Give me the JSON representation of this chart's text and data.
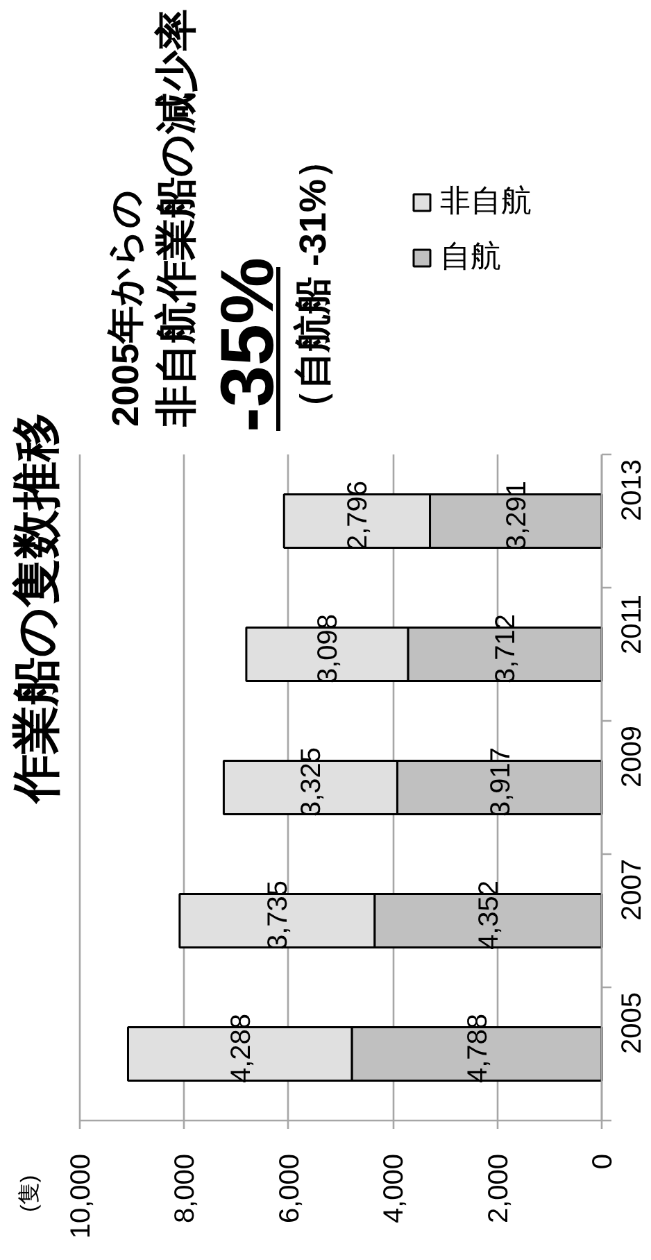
{
  "chart_data": {
    "type": "bar",
    "orientation": "horizontal",
    "stacked": true,
    "title": "作業船の隻数推移",
    "ylabel": "(隻)",
    "annotations": [
      "2005年からの",
      "非自航作業船の減少率",
      "-35%",
      "（自航船 -31%）"
    ],
    "categories": [
      "2013",
      "2011",
      "2009",
      "2007",
      "2005"
    ],
    "series": [
      {
        "name": "自航",
        "color": "#c0c0c0",
        "values": [
          3291,
          3712,
          3917,
          4352,
          4788
        ],
        "value_labels": [
          "3,291",
          "3,712",
          "3,917",
          "4,352",
          "4,788"
        ]
      },
      {
        "name": "非自航",
        "color": "#e0e0e0",
        "values": [
          2796,
          3098,
          3325,
          3735,
          4288
        ],
        "value_labels": [
          "2,796",
          "3,098",
          "3,325",
          "3,735",
          "4,288"
        ]
      }
    ],
    "xlim": [
      10000,
      0
    ],
    "xticks": [
      {
        "value": 10000,
        "label": "10,000"
      },
      {
        "value": 8000,
        "label": "8,000"
      },
      {
        "value": 6000,
        "label": "6,000"
      },
      {
        "value": 4000,
        "label": "4,000"
      },
      {
        "value": 2000,
        "label": "2,000"
      },
      0
    ],
    "grid": "x",
    "legend": "top right"
  }
}
